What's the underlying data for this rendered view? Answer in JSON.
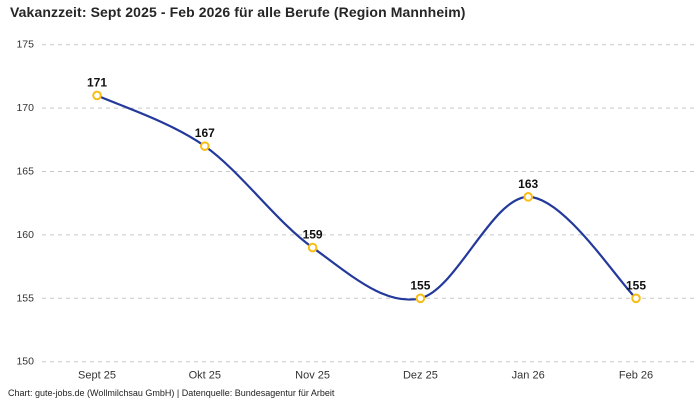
{
  "title": "Vakanzzeit: Sept 2025 - Feb 2026 für alle Berufe (Region Mannheim)",
  "footer": "Chart: gute-jobs.de (Wollmilchsau GmbH) | Datenquelle: Bundesagentur für Arbeit",
  "chart_data": {
    "type": "line",
    "title": "Vakanzzeit: Sept 2025 - Feb 2026 für alle Berufe (Region Mannheim)",
    "categories": [
      "Sept 25",
      "Okt 25",
      "Nov 25",
      "Dez 25",
      "Jan 26",
      "Feb 26"
    ],
    "values": [
      171,
      167,
      159,
      155,
      163,
      155
    ],
    "data_labels": [
      "171",
      "167",
      "159",
      "155",
      "163",
      "155"
    ],
    "xlabel": "",
    "ylabel": "",
    "ylim": [
      150,
      175
    ],
    "yticks": [
      150,
      155,
      160,
      165,
      170,
      175
    ],
    "grid": "horizontal-dashed",
    "legend": "none",
    "smooth": true,
    "colors": {
      "line": "#23399b",
      "marker_stroke": "#f9bd16",
      "marker_fill": "#ffffff",
      "gridline": "#c8c8c8",
      "title_text": "#262626",
      "axis_text": "#333333",
      "label_text": "#111111",
      "background": "#ffffff"
    }
  }
}
